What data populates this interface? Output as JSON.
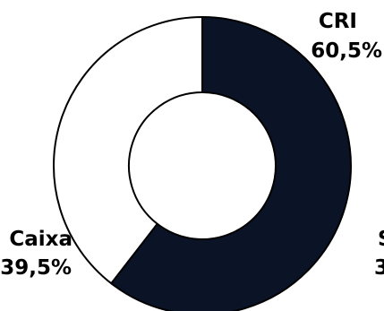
{
  "chart_data": {
    "type": "pie",
    "variant": "donut",
    "slices": [
      {
        "label": "CRI",
        "value_label": "60,5%",
        "value": 60.5,
        "color": "#0b1327"
      },
      {
        "label": "Caixa",
        "value_label": "39,5%",
        "value": 39.5,
        "color": "#ffffff"
      }
    ],
    "cropped_label": {
      "text": "S",
      "value_text": "3"
    },
    "outline_color": "#000000"
  }
}
